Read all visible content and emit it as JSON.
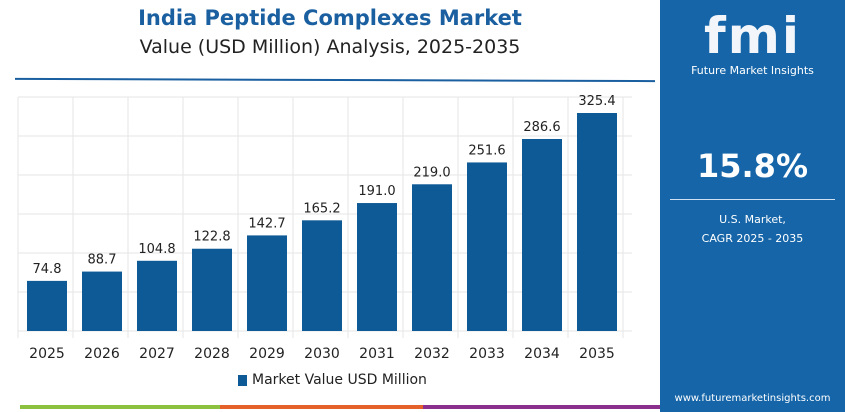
{
  "chart_data": {
    "type": "bar",
    "title": "India Peptide Complexes Market",
    "subtitle": "Value (USD Million) Analysis, 2025-2035",
    "categories": [
      "2025",
      "2026",
      "2027",
      "2028",
      "2029",
      "2030",
      "2031",
      "2032",
      "2033",
      "2034",
      "2035"
    ],
    "series": [
      {
        "name": "Market Value USD Million",
        "values": [
          74.8,
          88.7,
          104.8,
          122.8,
          142.7,
          165.2,
          191.0,
          219.0,
          251.6,
          286.6,
          325.4
        ]
      }
    ],
    "data_labels": [
      "74.8",
      "88.7",
      "104.8",
      "122.8",
      "142.7",
      "165.2",
      "191.0",
      "219.0",
      "251.6",
      "286.6",
      "325.4"
    ],
    "ylim": [
      0,
      340
    ],
    "grid": true,
    "legend": "bottom",
    "bar_color": "#0e5a96"
  },
  "panel": {
    "logo": "fmi",
    "brand": "Future Market Insights",
    "cagr": "15.8%",
    "label1": "U.S. Market,",
    "label2": "CAGR 2025 - 2035",
    "url": "www.futuremarketinsights.com",
    "color": "#1565a8"
  }
}
